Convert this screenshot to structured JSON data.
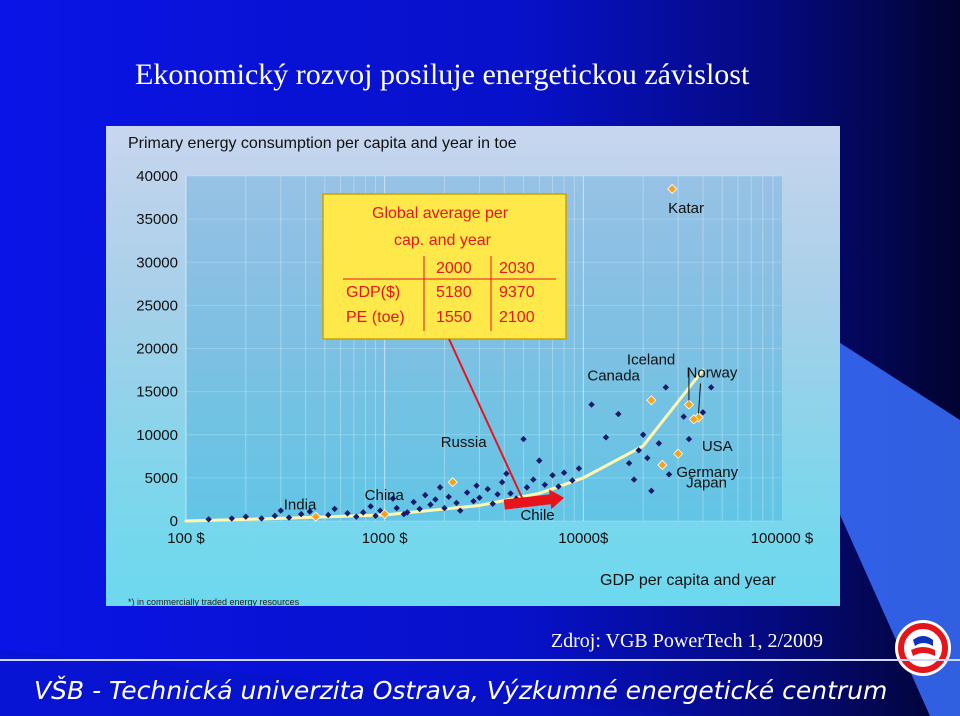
{
  "slide": {
    "title": "Ekonomický rozvoj posiluje energetickou závislost",
    "source": "Zdroj: VGB PowerTech 1, 2/2009",
    "footer": "VŠB - Technická univerzita Ostrava, Výzkumné energetické centrum"
  },
  "chart_data": {
    "type": "scatter",
    "title": "Primary energy consumption per capita and year in toe",
    "xlabel": "GDP per capita and year",
    "footnote": "*) in commercially traded energy resources",
    "x_scale": "log",
    "xlim": [
      100,
      100000
    ],
    "ylim": [
      0,
      40000
    ],
    "x_ticks": [
      100,
      1000,
      10000,
      100000
    ],
    "x_tick_labels": [
      "100 $",
      "1000 $",
      "10000$",
      "100000 $"
    ],
    "y_ticks": [
      0,
      5000,
      10000,
      15000,
      20000,
      25000,
      30000,
      35000,
      40000
    ],
    "y_tick_labels": [
      "0",
      "5000",
      "10000",
      "15000",
      "20000",
      "25000",
      "30000",
      "35000",
      "40000"
    ],
    "highlighted": [
      {
        "label": "Katar",
        "x": 28000,
        "y": 38500
      },
      {
        "label": "Iceland",
        "x": 34000,
        "y": 13500
      },
      {
        "label": "Norway",
        "x": 38000,
        "y": 12000
      },
      {
        "label": "Canada",
        "x": 22000,
        "y": 14000
      },
      {
        "label": "USA",
        "x": 36000,
        "y": 11800
      },
      {
        "label": "Germany",
        "x": 25000,
        "y": 6500
      },
      {
        "label": "Japan",
        "x": 30000,
        "y": 7800
      },
      {
        "label": "Russia",
        "x": 2200,
        "y": 4500
      },
      {
        "label": "China",
        "x": 1000,
        "y": 800
      },
      {
        "label": "India",
        "x": 450,
        "y": 500
      },
      {
        "label": "Chile",
        "x": 4500,
        "y": 2000
      }
    ],
    "countries": [
      {
        "x": 130,
        "y": 200
      },
      {
        "x": 170,
        "y": 300
      },
      {
        "x": 200,
        "y": 500
      },
      {
        "x": 240,
        "y": 300
      },
      {
        "x": 280,
        "y": 600
      },
      {
        "x": 300,
        "y": 1200
      },
      {
        "x": 330,
        "y": 400
      },
      {
        "x": 380,
        "y": 800
      },
      {
        "x": 420,
        "y": 1100
      },
      {
        "x": 520,
        "y": 700
      },
      {
        "x": 560,
        "y": 1400
      },
      {
        "x": 650,
        "y": 900
      },
      {
        "x": 720,
        "y": 500
      },
      {
        "x": 780,
        "y": 1000
      },
      {
        "x": 850,
        "y": 1700
      },
      {
        "x": 900,
        "y": 600
      },
      {
        "x": 950,
        "y": 1200
      },
      {
        "x": 1100,
        "y": 2600
      },
      {
        "x": 1150,
        "y": 1500
      },
      {
        "x": 1250,
        "y": 800
      },
      {
        "x": 1300,
        "y": 1000
      },
      {
        "x": 1400,
        "y": 2200
      },
      {
        "x": 1500,
        "y": 1400
      },
      {
        "x": 1600,
        "y": 3000
      },
      {
        "x": 1700,
        "y": 1900
      },
      {
        "x": 1800,
        "y": 2500
      },
      {
        "x": 1900,
        "y": 3900
      },
      {
        "x": 2000,
        "y": 1500
      },
      {
        "x": 2100,
        "y": 2800
      },
      {
        "x": 2300,
        "y": 2100
      },
      {
        "x": 2400,
        "y": 1200
      },
      {
        "x": 2600,
        "y": 3300
      },
      {
        "x": 2800,
        "y": 2300
      },
      {
        "x": 2900,
        "y": 4100
      },
      {
        "x": 3000,
        "y": 2700
      },
      {
        "x": 3300,
        "y": 3700
      },
      {
        "x": 3500,
        "y": 2000
      },
      {
        "x": 3700,
        "y": 3100
      },
      {
        "x": 3900,
        "y": 4500
      },
      {
        "x": 4100,
        "y": 5500
      },
      {
        "x": 4300,
        "y": 3200
      },
      {
        "x": 4600,
        "y": 2600
      },
      {
        "x": 5000,
        "y": 9500
      },
      {
        "x": 5200,
        "y": 3900
      },
      {
        "x": 5600,
        "y": 4800
      },
      {
        "x": 6000,
        "y": 7000
      },
      {
        "x": 6400,
        "y": 4200
      },
      {
        "x": 7000,
        "y": 5300
      },
      {
        "x": 7500,
        "y": 4000
      },
      {
        "x": 8000,
        "y": 5600
      },
      {
        "x": 8800,
        "y": 4700
      },
      {
        "x": 9500,
        "y": 6100
      },
      {
        "x": 11000,
        "y": 13500
      },
      {
        "x": 13000,
        "y": 9700
      },
      {
        "x": 15000,
        "y": 12400
      },
      {
        "x": 17000,
        "y": 6700
      },
      {
        "x": 18000,
        "y": 4800
      },
      {
        "x": 19000,
        "y": 8200
      },
      {
        "x": 20000,
        "y": 10000
      },
      {
        "x": 21000,
        "y": 7300
      },
      {
        "x": 22000,
        "y": 3500
      },
      {
        "x": 24000,
        "y": 9000
      },
      {
        "x": 26000,
        "y": 15500
      },
      {
        "x": 27000,
        "y": 5400
      },
      {
        "x": 32000,
        "y": 12100
      },
      {
        "x": 34000,
        "y": 9500
      },
      {
        "x": 40000,
        "y": 12600
      },
      {
        "x": 44000,
        "y": 15500
      }
    ],
    "trend_curve": [
      {
        "x": 100,
        "y": 0
      },
      {
        "x": 300,
        "y": 300
      },
      {
        "x": 1000,
        "y": 700
      },
      {
        "x": 3000,
        "y": 1800
      },
      {
        "x": 6000,
        "y": 3200
      },
      {
        "x": 10000,
        "y": 5000
      },
      {
        "x": 20000,
        "y": 8700
      },
      {
        "x": 40000,
        "y": 17500
      }
    ],
    "inset_table": {
      "heading_line1": "Global average per",
      "heading_line2": "cap. and year",
      "columns": [
        "",
        "2000",
        "2030"
      ],
      "rows": [
        {
          "label": "GDP($)",
          "values": [
            "5180",
            "9370"
          ]
        },
        {
          "label": "PE (toe)",
          "values": [
            "1550",
            "2100"
          ]
        }
      ]
    },
    "arrow": {
      "from": {
        "x": 4000,
        "y": 1900
      },
      "to": {
        "x": 8000,
        "y": 2700
      }
    }
  },
  "logo": {
    "name": "vsb-logo"
  },
  "colors": {
    "slide_bg": "#0a14e6",
    "highlight_marker": "#f6a21c",
    "country_marker": "#1a1a6a",
    "trend_curve": "#fff7b0",
    "arrow": "#e8141c",
    "callout_line": "#e8141c",
    "inset_bg": "#ffe94a",
    "inset_text": "#e3161b"
  }
}
